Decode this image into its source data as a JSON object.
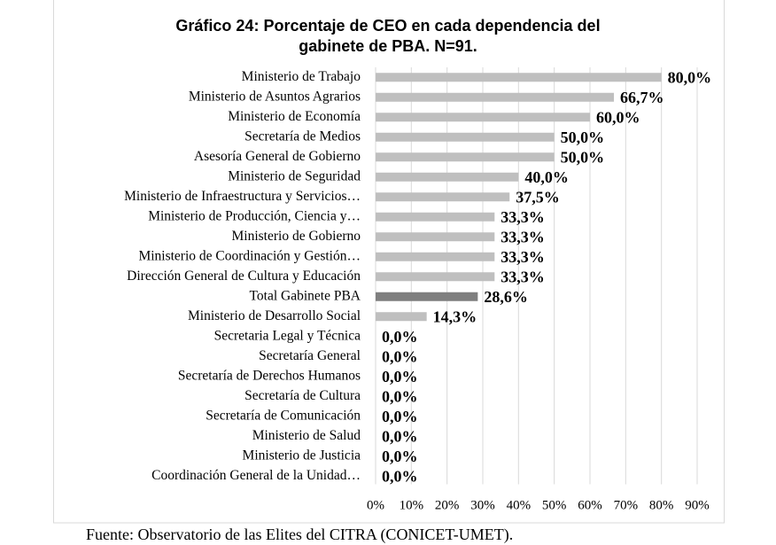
{
  "chart_data": {
    "type": "bar",
    "orientation": "horizontal",
    "title": [
      "Gráfico 24: Porcentaje de CEO en cada dependencia del",
      "gabinete de PBA. N=91."
    ],
    "categories": [
      "Ministerio de Trabajo",
      "Ministerio de Asuntos Agrarios",
      "Ministerio de Economía",
      "Secretaría de Medios",
      "Asesoría General de Gobierno",
      "Ministerio de Seguridad",
      "Ministerio de Infraestructura y Servicios…",
      "Ministerio de Producción, Ciencia y…",
      "Ministerio de Gobierno",
      "Ministerio de Coordinación y Gestión…",
      "Dirección General de Cultura y Educación",
      "Total Gabinete PBA",
      "Ministerio de Desarrollo Social",
      "Secretaria Legal y Técnica",
      "Secretaría General",
      "Secretaría de Derechos Humanos",
      "Secretaría de Cultura",
      "Secretaría de Comunicación",
      "Ministerio de Salud",
      "Ministerio de Justicia",
      "Coordinación General de la Unidad…"
    ],
    "values": [
      80.0,
      66.7,
      60.0,
      50.0,
      50.0,
      40.0,
      37.5,
      33.3,
      33.3,
      33.3,
      33.3,
      28.6,
      14.3,
      0,
      0,
      0,
      0,
      0,
      0,
      0,
      0
    ],
    "value_labels": [
      "80,0%",
      "66,7%",
      "60,0%",
      "50,0%",
      "50,0%",
      "40,0%",
      "37,5%",
      "33,3%",
      "33,3%",
      "33,3%",
      "33,3%",
      "28,6%",
      "14,3%",
      "0,0%",
      "0,0%",
      "0,0%",
      "0,0%",
      "0,0%",
      "0,0%",
      "0,0%",
      "0,0%"
    ],
    "colors": [
      "#bfbfbf",
      "#bfbfbf",
      "#bfbfbf",
      "#bfbfbf",
      "#bfbfbf",
      "#bfbfbf",
      "#bfbfbf",
      "#bfbfbf",
      "#bfbfbf",
      "#bfbfbf",
      "#bfbfbf",
      "#7f7f7f",
      "#bfbfbf",
      "#bfbfbf",
      "#bfbfbf",
      "#bfbfbf",
      "#bfbfbf",
      "#bfbfbf",
      "#bfbfbf",
      "#bfbfbf",
      "#bfbfbf"
    ],
    "xlim": [
      0,
      90
    ],
    "xticks": [
      {
        "value": 0,
        "label": "0%"
      },
      {
        "value": 10,
        "label": "10%"
      },
      {
        "value": 20,
        "label": "20%"
      },
      {
        "value": 30,
        "label": "30%"
      },
      {
        "value": 40,
        "label": "40%"
      },
      {
        "value": 50,
        "label": "50%"
      },
      {
        "value": 60,
        "label": "60%"
      },
      {
        "value": 70,
        "label": "70%"
      },
      {
        "value": 80,
        "label": "80%"
      },
      {
        "value": 90,
        "label": "90%"
      }
    ],
    "grid": true,
    "source": "Fuente: Observatorio de las Elites del CITRA (CONICET-UMET)."
  }
}
